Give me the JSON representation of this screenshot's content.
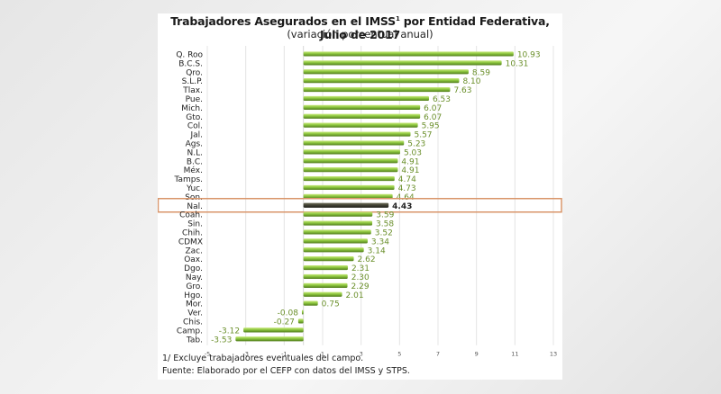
{
  "chart_data": {
    "type": "bar",
    "orientation": "horizontal",
    "title": "Trabajadores Asegurados en el IMSS",
    "title_superscript": "1",
    "title_suffix": " por Entidad Federativa, Julio de 2017",
    "subtitle": "(variación porcentual anual)",
    "xlabel": "",
    "ylabel": "",
    "xlim": [
      -5,
      13
    ],
    "xticks": [
      -5,
      -3,
      -1,
      1,
      3,
      5,
      7,
      9,
      11,
      13
    ],
    "grid": true,
    "highlight_category": "Nal.",
    "categories": [
      "Q. Roo",
      "B.C.S.",
      "Qro.",
      "S.L.P.",
      "Tlax.",
      "Pue.",
      "Mich.",
      "Gto.",
      "Col.",
      "Jal.",
      "Ags.",
      "N.L.",
      "B.C.",
      "Méx.",
      "Tamps.",
      "Yuc.",
      "Son.",
      "Nal.",
      "Coah.",
      "Sin.",
      "Chih.",
      "CDMX",
      "Zac.",
      "Oax.",
      "Dgo.",
      "Nay.",
      "Gro.",
      "Hgo.",
      "Mor.",
      "Ver.",
      "Chis.",
      "Camp.",
      "Tab."
    ],
    "values": [
      10.93,
      10.31,
      8.59,
      8.1,
      7.63,
      6.53,
      6.07,
      6.07,
      5.95,
      5.57,
      5.23,
      5.03,
      4.91,
      4.91,
      4.74,
      4.73,
      4.64,
      4.43,
      3.59,
      3.58,
      3.52,
      3.34,
      3.14,
      2.62,
      2.31,
      2.3,
      2.29,
      2.01,
      0.75,
      -0.08,
      -0.27,
      -3.12,
      -3.53
    ],
    "value_labels": [
      "10.93",
      "10.31",
      "8.59",
      "8.10",
      "7.63",
      "6.53",
      "6.07",
      "6.07",
      "5.95",
      "5.57",
      "5.23",
      "5.03",
      "4.91",
      "4.91",
      "4.74",
      "4.73",
      "4.64",
      "4.43",
      "3.59",
      "3.58",
      "3.52",
      "3.34",
      "3.14",
      "2.62",
      "2.31",
      "2.30",
      "2.29",
      "2.01",
      "0.75",
      "-0.08",
      "-0.27",
      "-3.12",
      "-3.53"
    ],
    "colors": {
      "bar": "#8cc63f",
      "bar_light": "#c8e87a",
      "bar_dark": "#4f7a1a",
      "highlight_bar": "#3f3f32",
      "highlight_bar_dark": "#1f1f18",
      "value_label": "#6a8f2a",
      "highlight_label": "#222222",
      "highlight_box": "#d9956a",
      "grid": "#e4e4e4"
    }
  },
  "notes": {
    "footnote": "1/ Excluye trabajadores eventuales del campo.",
    "source": "Fuente: Elaborado por el CEFP con  datos del  IMSS y STPS."
  }
}
